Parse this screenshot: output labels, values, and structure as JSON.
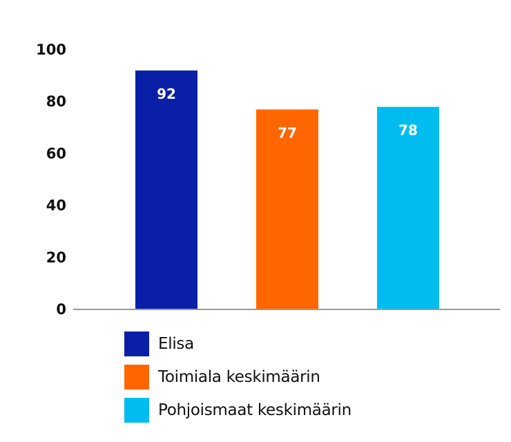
{
  "chart_data": {
    "type": "bar",
    "categories": [
      "Elisa",
      "Toimiala keskimäärin",
      "Pohjoismaat keskimäärin"
    ],
    "values": [
      92,
      77,
      78
    ],
    "data_labels": [
      "92",
      "77",
      "78"
    ],
    "colors": [
      "#0a1fa8",
      "#ff6600",
      "#00bcf0"
    ],
    "axis_color": "#999999",
    "ylim": [
      0,
      100
    ],
    "yticks": [
      "0",
      "20",
      "40",
      "60",
      "80",
      "100"
    ],
    "grid": false,
    "legend_position": "bottom-left",
    "legend": [
      {
        "name": "Elisa",
        "color": "#0a1fa8"
      },
      {
        "name": "Toimiala keskimäärin",
        "color": "#ff6600"
      },
      {
        "name": "Pohjoismaat keskimäärin",
        "color": "#00bcf0"
      }
    ]
  }
}
